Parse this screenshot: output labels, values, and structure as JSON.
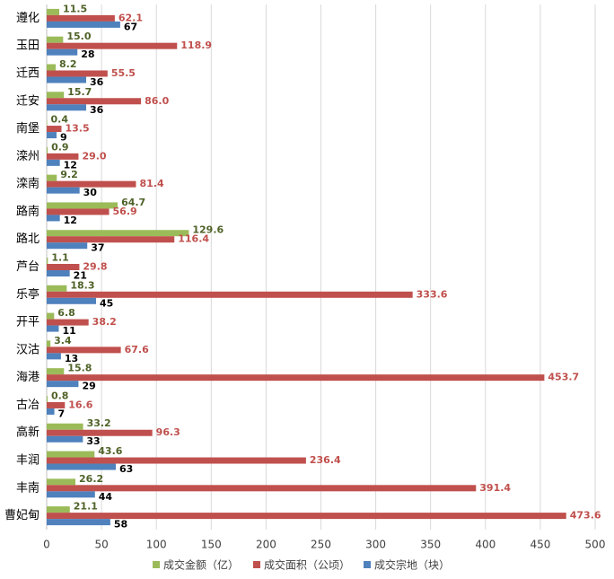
{
  "chart_data": {
    "type": "bar",
    "orientation": "horizontal",
    "categories": [
      "遵化",
      "玉田",
      "迁西",
      "迁安",
      "南堡",
      "滦州",
      "滦南",
      "路南",
      "路北",
      "芦台",
      "乐亭",
      "开平",
      "汉沽",
      "海港",
      "古冶",
      "高新",
      "丰润",
      "丰南",
      "曹妃甸"
    ],
    "series": [
      {
        "name": "成交金额（亿）",
        "color": "#9bbb59",
        "label_color": "#4f6228",
        "values": [
          11.5,
          15.0,
          8.2,
          15.7,
          0.4,
          0.9,
          9.2,
          64.7,
          129.6,
          1.1,
          18.3,
          6.8,
          3.4,
          15.8,
          0.8,
          33.2,
          43.6,
          26.2,
          21.1
        ],
        "value_labels": [
          "11.5",
          "15.0",
          "8.2",
          "15.7",
          "0.4",
          "0.9",
          "9.2",
          "64.7",
          "129.6",
          "1.1",
          "18.3",
          "6.8",
          "3.4",
          "15.8",
          "0.8",
          "33.2",
          "43.6",
          "26.2",
          "21.1"
        ]
      },
      {
        "name": "成交面积（公顷）",
        "color": "#c0504d",
        "label_color": "#c0504d",
        "values": [
          62.1,
          118.9,
          55.5,
          86.0,
          13.5,
          29.0,
          81.4,
          56.9,
          116.4,
          29.8,
          333.6,
          38.2,
          67.6,
          453.7,
          16.6,
          96.3,
          236.4,
          391.4,
          473.6
        ],
        "value_labels": [
          "62.1",
          "118.9",
          "55.5",
          "86.0",
          "13.5",
          "29.0",
          "81.4",
          "56.9",
          "116.4",
          "29.8",
          "333.6",
          "38.2",
          "67.6",
          "453.7",
          "16.6",
          "96.3",
          "236.4",
          "391.4",
          "473.6"
        ]
      },
      {
        "name": "成交宗地（块）",
        "color": "#4f81bd",
        "label_color": "#000000",
        "values": [
          67,
          28,
          36,
          36,
          9,
          12,
          30,
          12,
          37,
          21,
          45,
          11,
          13,
          29,
          7,
          33,
          63,
          44,
          58
        ]
      }
    ],
    "xlim": [
      0,
      500
    ],
    "xticks": [
      0,
      50,
      100,
      150,
      200,
      250,
      300,
      350,
      400,
      450,
      500
    ],
    "grid": true
  }
}
